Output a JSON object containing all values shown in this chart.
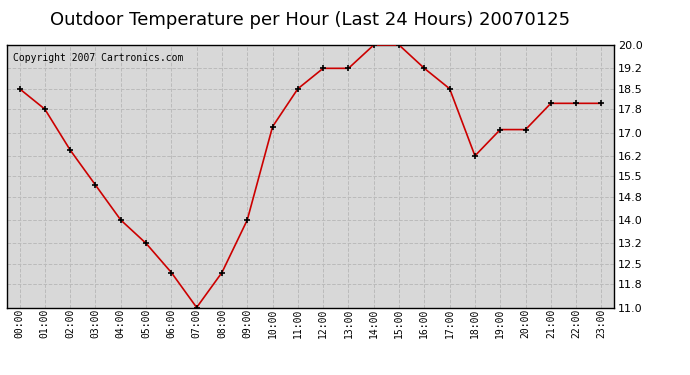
{
  "title": "Outdoor Temperature per Hour (Last 24 Hours) 20070125",
  "copyright": "Copyright 2007 Cartronics.com",
  "hours": [
    "00:00",
    "01:00",
    "02:00",
    "03:00",
    "04:00",
    "05:00",
    "06:00",
    "07:00",
    "08:00",
    "09:00",
    "10:00",
    "11:00",
    "12:00",
    "13:00",
    "14:00",
    "15:00",
    "16:00",
    "17:00",
    "18:00",
    "19:00",
    "20:00",
    "21:00",
    "22:00",
    "23:00"
  ],
  "temps": [
    18.5,
    17.8,
    16.4,
    15.2,
    14.0,
    13.2,
    12.2,
    11.0,
    12.2,
    14.0,
    17.2,
    18.5,
    19.2,
    19.2,
    20.0,
    20.0,
    19.2,
    18.5,
    16.2,
    17.1,
    17.1,
    18.0,
    18.0,
    18.0
  ],
  "line_color": "#cc0000",
  "marker_color": "#000000",
  "bg_color": "#d8d8d8",
  "grid_color": "#bbbbbb",
  "ylim_min": 11.0,
  "ylim_max": 20.0,
  "yticks": [
    11.0,
    11.8,
    12.5,
    13.2,
    14.0,
    14.8,
    15.5,
    16.2,
    17.0,
    17.8,
    18.5,
    19.2,
    20.0
  ],
  "title_fontsize": 13,
  "copyright_fontsize": 7
}
